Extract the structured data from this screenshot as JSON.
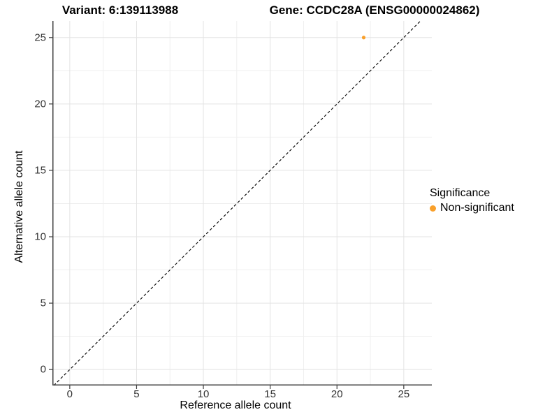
{
  "figure": {
    "title_left": "Variant: 6:139113988",
    "title_right": "Gene: CCDC28A (ENSG00000024862)"
  },
  "chart_data": {
    "type": "scatter",
    "title": "Variant: 6:139113988   Gene: CCDC28A (ENSG00000024862)",
    "xlabel": "Reference allele count",
    "ylabel": "Alternative allele count",
    "xlim": [
      -1.3,
      27.1
    ],
    "ylim": [
      -1.2,
      26.25
    ],
    "x_ticks": [
      0,
      5,
      10,
      15,
      20,
      25
    ],
    "y_ticks": [
      0,
      5,
      10,
      15,
      20,
      25
    ],
    "x_minor_ticks": [
      2.5,
      7.5,
      12.5,
      17.5,
      22.5
    ],
    "y_minor_ticks": [
      2.5,
      7.5,
      12.5,
      17.5,
      22.5
    ],
    "grid": true,
    "series": [
      {
        "name": "Non-significant",
        "color": "#F9A02B",
        "points": [
          {
            "x": 22,
            "y": 25
          }
        ]
      }
    ],
    "reference_line": {
      "type": "identity",
      "style": "dashed",
      "color": "#000000",
      "dash": "4 3"
    },
    "legend": {
      "title": "Significance",
      "position": "right",
      "entries": [
        {
          "label": "Non-significant",
          "color": "#F9A02B"
        }
      ]
    },
    "point_radius": 2.6,
    "legend_dot_radius": 4.5,
    "colors": {
      "background": "#FFFFFF",
      "grid_major": "#E3E3E3",
      "grid_minor": "#EFEFEF",
      "axis_line": "#3F3F3F",
      "tick_mark": "#3F3F3F",
      "tick_label": "#333333"
    }
  }
}
